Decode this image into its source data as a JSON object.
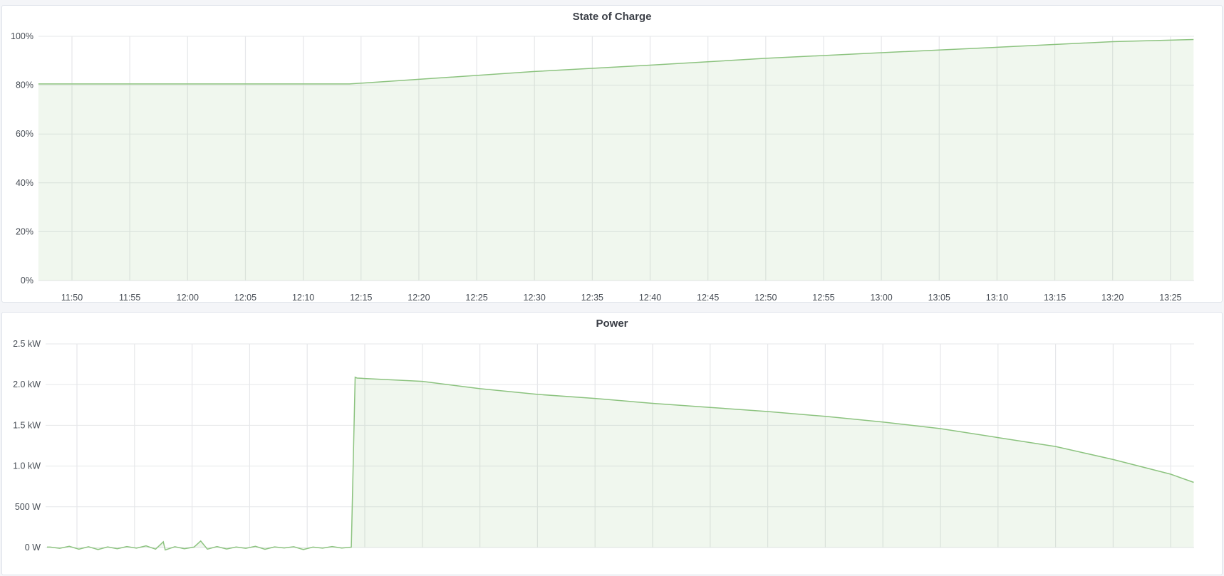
{
  "chart_data": [
    {
      "type": "area",
      "title": "State of Charge",
      "xlabel": "",
      "ylabel": "",
      "x_range": [
        "11:47:06",
        "13:27:00"
      ],
      "ylim": [
        0,
        100
      ],
      "y_ticks": [
        "0%",
        "20%",
        "40%",
        "60%",
        "80%",
        "100%"
      ],
      "y_tick_values": [
        0,
        20,
        40,
        60,
        80,
        100
      ],
      "x_ticks": [
        "11:50",
        "11:55",
        "12:00",
        "12:05",
        "12:10",
        "12:15",
        "12:20",
        "12:25",
        "12:30",
        "12:35",
        "12:40",
        "12:45",
        "12:50",
        "12:55",
        "13:00",
        "13:05",
        "13:10",
        "13:15",
        "13:20",
        "13:25"
      ],
      "grid": true,
      "color": "#8cc37f",
      "series": [
        {
          "x": [
            "11:47:06",
            "12:14:00",
            "12:20:00",
            "12:30:00",
            "12:40:00",
            "12:50:00",
            "13:00:00",
            "13:10:00",
            "13:20:00",
            "13:27:00"
          ],
          "y": [
            80.5,
            80.5,
            82.4,
            85.6,
            88.2,
            91.0,
            93.3,
            95.5,
            97.8,
            98.7
          ]
        }
      ]
    },
    {
      "type": "area",
      "title": "Power",
      "xlabel": "",
      "ylabel": "",
      "x_range": [
        "11:47:15",
        "13:27:00"
      ],
      "ylim": [
        0,
        2500
      ],
      "y_ticks": [
        "0 W",
        "500 W",
        "1.0 kW",
        "1.5 kW",
        "2.0 kW",
        "2.5 kW"
      ],
      "y_tick_values": [
        0,
        500,
        1000,
        1500,
        2000,
        2500
      ],
      "grid": true,
      "color": "#8cc37f",
      "series": [
        {
          "x": [
            "11:47:40",
            "11:48:30",
            "11:49:20",
            "11:50:10",
            "11:51:00",
            "11:51:50",
            "11:52:40",
            "11:53:30",
            "11:54:20",
            "11:55:10",
            "11:56:00",
            "11:56:50",
            "11:57:30",
            "11:57:40",
            "11:58:30",
            "11:59:20",
            "12:00:10",
            "12:00:45",
            "12:01:20",
            "12:02:10",
            "12:03:00",
            "12:03:50",
            "12:04:40",
            "12:05:30",
            "12:06:20",
            "12:07:10",
            "12:08:00",
            "12:08:50",
            "12:09:40",
            "12:10:30",
            "12:11:20",
            "12:12:10",
            "12:13:00",
            "12:13:50",
            "12:14:10",
            "12:14:20",
            "12:15:00",
            "12:20:00",
            "12:25:00",
            "12:30:00",
            "12:35:00",
            "12:40:00",
            "12:45:00",
            "12:50:00",
            "12:55:00",
            "13:00:00",
            "13:05:00",
            "13:10:00",
            "13:15:00",
            "13:20:00",
            "13:25:00",
            "13:27:00"
          ],
          "y": [
            5,
            -10,
            15,
            -20,
            10,
            -25,
            8,
            -15,
            12,
            -8,
            20,
            -20,
            70,
            -30,
            10,
            -15,
            5,
            80,
            -20,
            12,
            -18,
            6,
            -10,
            15,
            -22,
            8,
            -5,
            10,
            -25,
            5,
            -8,
            12,
            -6,
            4,
            2090,
            2080,
            2075,
            2040,
            1950,
            1880,
            1830,
            1770,
            1720,
            1670,
            1610,
            1540,
            1460,
            1350,
            1240,
            1080,
            900,
            800
          ]
        }
      ]
    }
  ]
}
